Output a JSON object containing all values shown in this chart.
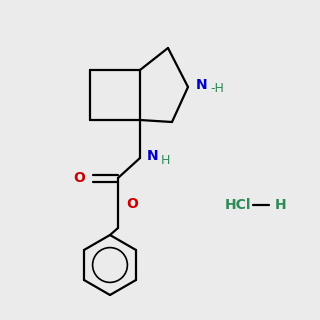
{
  "bg_color": "#ebebeb",
  "bond_color": "#000000",
  "N_color": "#0000cc",
  "O_color": "#cc0000",
  "NH_color": "#2e8b57",
  "lw": 1.6,
  "fs": 10,
  "fs_small": 9
}
